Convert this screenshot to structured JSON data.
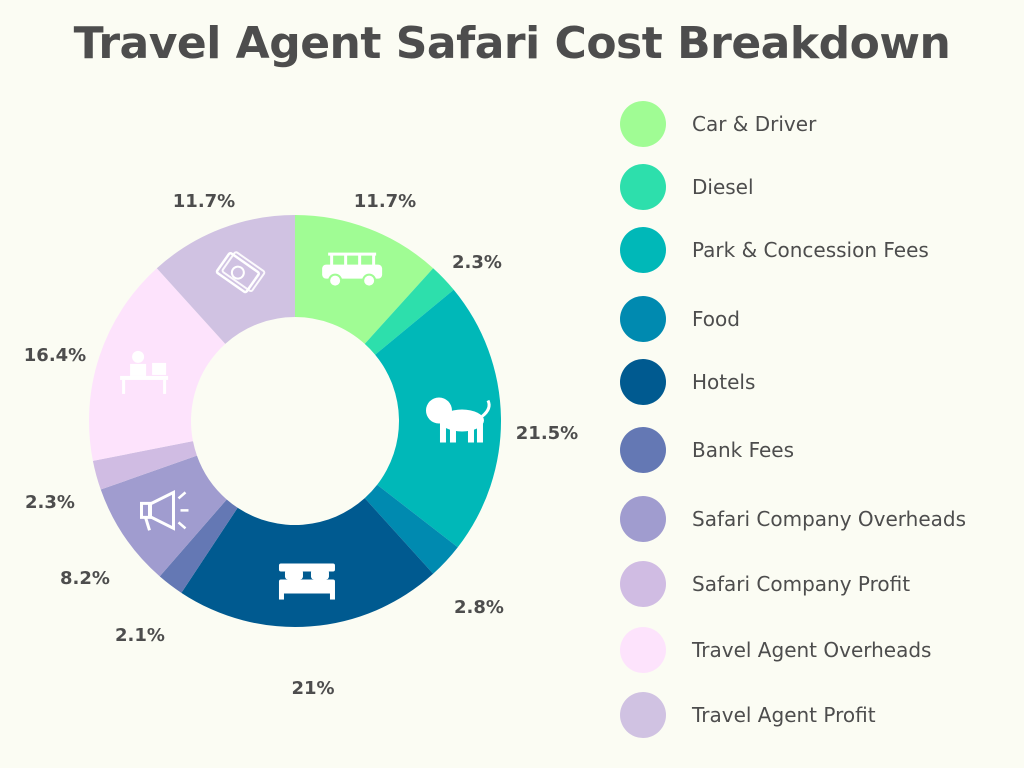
{
  "chart_data": {
    "type": "pie",
    "title": "Travel Agent Safari Cost Breakdown",
    "categories": [
      "Car & Driver",
      "Diesel",
      "Park & Concession Fees",
      "Food",
      "Hotels",
      "Bank Fees",
      "Safari Company Overheads",
      "Safari Company Profit",
      "Travel Agent Overheads",
      "Travel Agent Profit"
    ],
    "values": [
      11.7,
      2.3,
      21.5,
      2.8,
      21,
      2.1,
      8.2,
      2.3,
      16.4,
      11.7
    ],
    "value_labels": [
      "11.7%",
      "2.3%",
      "21.5%",
      "2.8%",
      "21%",
      "2.1%",
      "8.2%",
      "2.3%",
      "16.4%",
      "11.7%"
    ],
    "colors": [
      "#a0fc94",
      "#2ddfac",
      "#00b8b8",
      "#008ab0",
      "#005a90",
      "#6478b4",
      "#a09ccf",
      "#d0bce3",
      "#fde3fc",
      "#d0c2e2"
    ],
    "icons": [
      "safari-jeep-icon",
      "",
      "lion-icon",
      "",
      "bed-icon",
      "",
      "megaphone-icon",
      "",
      "desk-worker-icon",
      "money-icon"
    ],
    "legend_position": "right",
    "donut": true
  }
}
